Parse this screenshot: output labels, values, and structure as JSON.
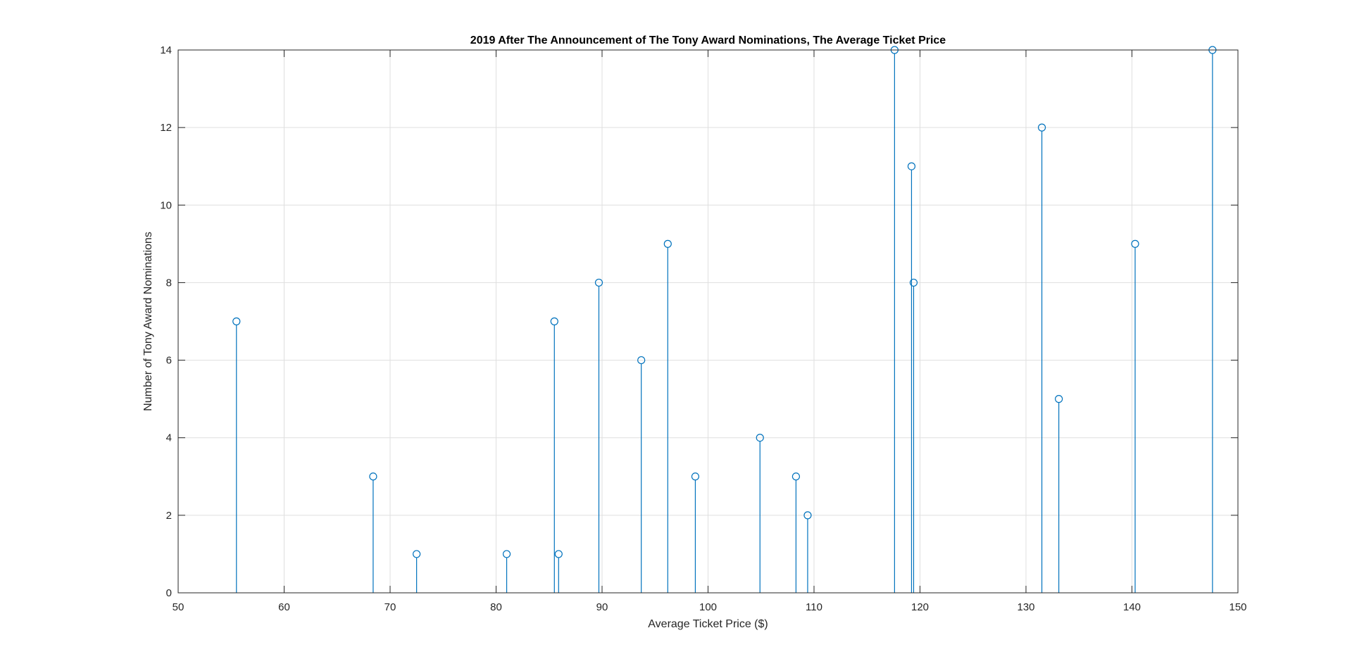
{
  "chart_data": {
    "type": "stem",
    "title": "2019 After The Announcement of The Tony Award Nominations, The Average Ticket Price",
    "xlabel": "Average Ticket Price ($)",
    "ylabel": "Number of Tony Award Nominations",
    "xlim": [
      50,
      150
    ],
    "ylim": [
      0,
      14
    ],
    "xticks": [
      50,
      60,
      70,
      80,
      90,
      100,
      110,
      120,
      130,
      140,
      150
    ],
    "yticks": [
      0,
      2,
      4,
      6,
      8,
      10,
      12,
      14
    ],
    "grid": true,
    "marker": "circle",
    "color": "#0072BD",
    "x": [
      55.5,
      68.4,
      72.5,
      81.0,
      85.5,
      85.9,
      89.7,
      93.7,
      96.2,
      98.8,
      104.9,
      108.3,
      109.4,
      117.6,
      119.2,
      119.4,
      131.5,
      133.1,
      140.3,
      147.6
    ],
    "y": [
      7,
      3,
      1,
      1,
      7,
      1,
      8,
      6,
      9,
      3,
      4,
      3,
      2,
      14,
      11,
      8,
      12,
      5,
      9,
      14
    ]
  }
}
